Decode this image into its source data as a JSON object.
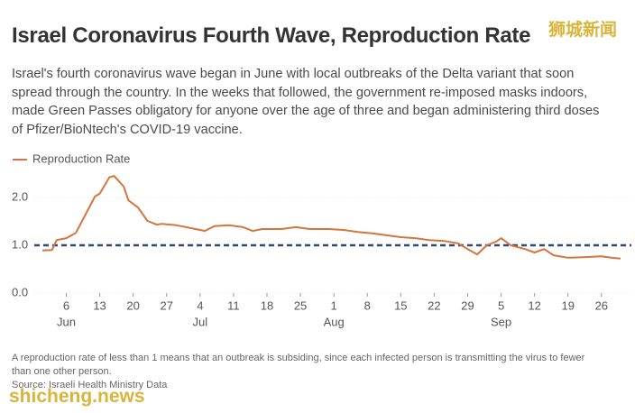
{
  "watermark_top": "狮城新闻",
  "watermark_bottom": "shicheng.news",
  "chart_data": {
    "type": "line",
    "title": "Israel Coronavirus Fourth Wave, Reproduction Rate",
    "description": [
      "Israel's fourth coronavirus wave began in June with local outbreaks of the Delta variant that soon",
      "spread through the country. In the weeks that followed, the government re-imposed masks indoors,",
      "made Green Passes obligatory for anyone over the age of three and began administering third doses",
      "of Pfizer/BioNtech's COVID-19 vaccine."
    ],
    "footnote": [
      "A reproduction rate of less than 1 means that an outbreak is subsiding, since each infected person is transmitting the virus to fewer",
      "than one other person."
    ],
    "source": "Source: Israeli Health Ministry Data",
    "x": [
      "06-01",
      "06-03",
      "06-04",
      "06-06",
      "06-08",
      "06-10",
      "06-12",
      "06-13",
      "06-15",
      "06-16",
      "06-18",
      "06-19",
      "06-21",
      "06-23",
      "06-25",
      "06-26",
      "06-29",
      "07-02",
      "07-05",
      "07-07",
      "07-10",
      "07-13",
      "07-15",
      "07-17",
      "07-21",
      "07-24",
      "07-27",
      "07-31",
      "08-03",
      "08-06",
      "08-09",
      "08-12",
      "08-15",
      "08-18",
      "08-21",
      "08-24",
      "08-27",
      "08-29",
      "08-31",
      "09-02",
      "09-04",
      "09-05",
      "09-07",
      "09-10",
      "09-12",
      "09-14",
      "09-16",
      "09-19",
      "09-22",
      "09-24",
      "09-26",
      "09-28",
      "09-30"
    ],
    "series": [
      {
        "name": "Reproduction Rate",
        "color": "#d4753f",
        "values": [
          0.89,
          0.9,
          1.11,
          1.15,
          1.26,
          1.64,
          2.02,
          2.08,
          2.42,
          2.45,
          2.23,
          1.94,
          1.79,
          1.51,
          1.43,
          1.45,
          1.42,
          1.36,
          1.3,
          1.4,
          1.42,
          1.38,
          1.3,
          1.34,
          1.34,
          1.38,
          1.34,
          1.34,
          1.32,
          1.28,
          1.25,
          1.21,
          1.17,
          1.15,
          1.11,
          1.09,
          1.04,
          0.92,
          0.81,
          1.0,
          1.08,
          1.15,
          1.0,
          0.92,
          0.85,
          0.92,
          0.79,
          0.74,
          0.75,
          0.76,
          0.77,
          0.74,
          0.72
        ]
      }
    ],
    "reference_line": {
      "value": 1,
      "color": "#2d4a7c"
    },
    "xlim": [
      "06-01",
      "09-30"
    ],
    "xticks": [
      {
        "value": "06-06",
        "label": "6"
      },
      {
        "value": "06-13",
        "label": "13"
      },
      {
        "value": "06-20",
        "label": "20"
      },
      {
        "value": "06-27",
        "label": "27"
      },
      {
        "value": "07-04",
        "label": "4"
      },
      {
        "value": "07-11",
        "label": "11"
      },
      {
        "value": "07-18",
        "label": "18"
      },
      {
        "value": "07-25",
        "label": "25"
      },
      {
        "value": "08-01",
        "label": "1"
      },
      {
        "value": "08-08",
        "label": "8"
      },
      {
        "value": "08-15",
        "label": "15"
      },
      {
        "value": "08-22",
        "label": "22"
      },
      {
        "value": "08-29",
        "label": "29"
      },
      {
        "value": "09-05",
        "label": "5"
      },
      {
        "value": "09-12",
        "label": "12"
      },
      {
        "value": "09-19",
        "label": "19"
      },
      {
        "value": "09-26",
        "label": "26"
      }
    ],
    "month_labels": [
      {
        "value": "06-06",
        "label": "Jun"
      },
      {
        "value": "07-04",
        "label": "Jul"
      },
      {
        "value": "08-01",
        "label": "Aug"
      },
      {
        "value": "09-05",
        "label": "Sep"
      }
    ],
    "ylim": [
      0,
      2.5
    ],
    "yticks": [
      {
        "value": 0,
        "label": "0.0"
      },
      {
        "value": 1,
        "label": "1.0"
      },
      {
        "value": 2,
        "label": "2.0"
      }
    ],
    "grid": true
  }
}
